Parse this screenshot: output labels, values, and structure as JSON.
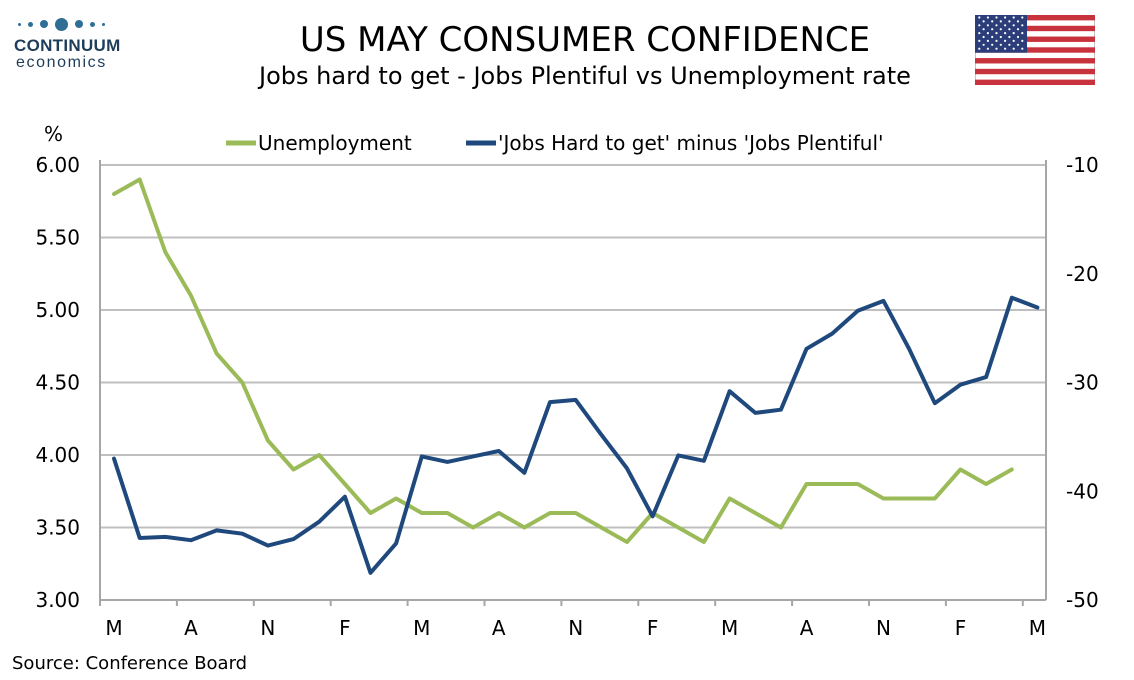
{
  "brand": {
    "name": "CONTINUUM",
    "sub": "economics"
  },
  "title": "US MAY CONSUMER CONFIDENCE",
  "subtitle": "Jobs hard to get - Jobs Plentiful vs Unemployment rate",
  "source": "Source: Conference Board",
  "colors": {
    "unemployment": "#9bbb59",
    "jobs": "#1f497d",
    "grid": "#bfbfbf",
    "axis": "#a6a6a6",
    "brand": "#1e3d5a"
  },
  "chart_data": {
    "type": "line",
    "left_axis": {
      "unit_label": "%",
      "min": 3.0,
      "max": 6.0,
      "ticks": [
        "6.00",
        "5.50",
        "5.00",
        "4.50",
        "4.00",
        "3.50",
        "3.00"
      ]
    },
    "right_axis": {
      "min": -50,
      "max": -10,
      "ticks": [
        "-10",
        "-20",
        "-30",
        "-40",
        "-50"
      ]
    },
    "x_tick_labels": [
      "M",
      "A",
      "N",
      "F",
      "M",
      "A",
      "N",
      "F",
      "M",
      "A",
      "N",
      "F",
      "M"
    ],
    "grid": true,
    "legend_position": "top",
    "series": [
      {
        "name": "Unemployment",
        "axis": "left",
        "values": [
          5.8,
          5.9,
          5.4,
          5.1,
          4.7,
          4.5,
          4.1,
          3.9,
          4.0,
          3.8,
          3.6,
          3.7,
          3.6,
          3.6,
          3.5,
          3.6,
          3.5,
          3.6,
          3.6,
          3.5,
          3.4,
          3.6,
          3.5,
          3.4,
          3.7,
          3.6,
          3.5,
          3.8,
          3.8,
          3.8,
          3.7,
          3.7,
          3.7,
          3.9,
          3.8,
          3.9
        ]
      },
      {
        "name": "'Jobs Hard to get' minus 'Jobs Plentiful'",
        "axis": "right",
        "values": [
          -37.0,
          -44.3,
          -44.2,
          -44.5,
          -43.6,
          -43.9,
          -45.0,
          -44.4,
          -42.8,
          -40.5,
          -47.5,
          -44.8,
          -36.8,
          -37.3,
          -36.8,
          -36.3,
          -38.3,
          -31.8,
          -31.6,
          -34.8,
          -37.9,
          -42.3,
          -36.7,
          -37.2,
          -30.8,
          -32.8,
          -32.5,
          -26.9,
          -25.5,
          -23.4,
          -22.5,
          -26.9,
          -31.9,
          -30.2,
          -29.5,
          -22.2,
          -23.1
        ]
      }
    ]
  }
}
